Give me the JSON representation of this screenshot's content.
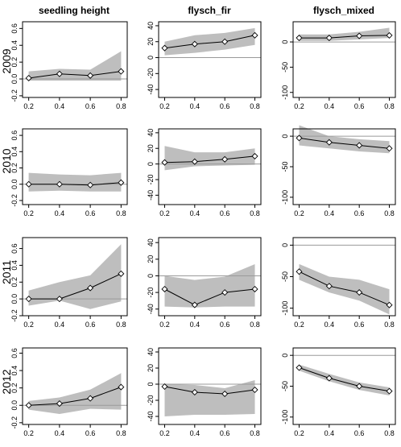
{
  "figure": {
    "column_titles": [
      "seedling height",
      "flysch_fir",
      "flysch_mixed"
    ],
    "row_labels": [
      "2009",
      "2010",
      "2011",
      "2012"
    ]
  },
  "style": {
    "band_color": "#bebebe",
    "line_color": "#000000",
    "zero_line_color": "#9a9a9a",
    "marker_fill": "#ffffff",
    "marker_shape": "diamond"
  },
  "chart_data": [
    {
      "type": "line",
      "row": "2009",
      "column": "seedling height",
      "x": [
        0.2,
        0.4,
        0.6,
        0.8
      ],
      "y": [
        0.01,
        0.06,
        0.04,
        0.09
      ],
      "band_lower": [
        -0.02,
        -0.02,
        -0.02,
        -0.02
      ],
      "band_upper": [
        0.09,
        0.12,
        0.11,
        0.33
      ],
      "ylim": [
        -0.22,
        0.68
      ],
      "yticks": [
        -0.2,
        0.0,
        0.2,
        0.4,
        0.6
      ],
      "ytick_labels": [
        "-0.2",
        "0.0",
        "0.2",
        "0.4",
        "0.6"
      ],
      "xticks": [
        0.2,
        0.4,
        0.6,
        0.8
      ],
      "xtick_labels": [
        "0.2",
        "0.4",
        "0.6",
        "0.8"
      ],
      "zero_line": true
    },
    {
      "type": "line",
      "row": "2009",
      "column": "flysch_fir",
      "x": [
        0.2,
        0.4,
        0.6,
        0.8
      ],
      "y": [
        12,
        17,
        20,
        28
      ],
      "band_lower": [
        3,
        6,
        10,
        16
      ],
      "band_upper": [
        20,
        28,
        31,
        37
      ],
      "ylim": [
        -50,
        45
      ],
      "yticks": [
        -40,
        -20,
        0,
        20,
        40
      ],
      "ytick_labels": [
        "-40",
        "-20",
        "0",
        "20",
        "40"
      ],
      "xticks": [
        0.2,
        0.4,
        0.6,
        0.8
      ],
      "xtick_labels": [
        "0.2",
        "0.4",
        "0.6",
        "0.8"
      ],
      "zero_line": true
    },
    {
      "type": "line",
      "row": "2009",
      "column": "flysch_mixed",
      "x": [
        0.2,
        0.4,
        0.6,
        0.8
      ],
      "y": [
        8,
        8,
        12,
        13
      ],
      "band_lower": [
        2,
        2,
        5,
        8
      ],
      "band_upper": [
        15,
        15,
        20,
        28
      ],
      "ylim": [
        -110,
        40
      ],
      "yticks": [
        -100,
        -50,
        0
      ],
      "ytick_labels": [
        "-100",
        "-50",
        "0"
      ],
      "xticks": [
        0.2,
        0.4,
        0.6,
        0.8
      ],
      "xtick_labels": [
        "0.2",
        "0.4",
        "0.6",
        "0.8"
      ],
      "zero_line": true
    },
    {
      "type": "line",
      "row": "2010",
      "column": "seedling height",
      "x": [
        0.2,
        0.4,
        0.6,
        0.8
      ],
      "y": [
        0.0,
        0.0,
        -0.01,
        0.02
      ],
      "band_lower": [
        -0.09,
        -0.08,
        -0.09,
        -0.09
      ],
      "band_upper": [
        0.14,
        0.12,
        0.11,
        0.14
      ],
      "ylim": [
        -0.25,
        0.68
      ],
      "yticks": [
        -0.2,
        0.0,
        0.2,
        0.4,
        0.6
      ],
      "ytick_labels": [
        "-0.2",
        "0.0",
        "0.2",
        "0.4",
        "0.6"
      ],
      "xticks": [
        0.2,
        0.4,
        0.6,
        0.8
      ],
      "xtick_labels": [
        "0.2",
        "0.4",
        "0.6",
        "0.8"
      ],
      "zero_line": true
    },
    {
      "type": "line",
      "row": "2010",
      "column": "flysch_fir",
      "x": [
        0.2,
        0.4,
        0.6,
        0.8
      ],
      "y": [
        2,
        3,
        6,
        10
      ],
      "band_lower": [
        -8,
        -3,
        -2,
        -1
      ],
      "band_upper": [
        23,
        15,
        15,
        20
      ],
      "ylim": [
        -52,
        45
      ],
      "yticks": [
        -40,
        -20,
        0,
        20,
        40
      ],
      "ytick_labels": [
        "-40",
        "-20",
        "0",
        "20",
        "40"
      ],
      "xticks": [
        0.2,
        0.4,
        0.6,
        0.8
      ],
      "xtick_labels": [
        "0.2",
        "0.4",
        "0.6",
        "0.8"
      ],
      "zero_line": true
    },
    {
      "type": "line",
      "row": "2010",
      "column": "flysch_mixed",
      "x": [
        0.2,
        0.4,
        0.6,
        0.8
      ],
      "y": [
        -3,
        -10,
        -15,
        -20
      ],
      "band_lower": [
        -15,
        -20,
        -25,
        -28
      ],
      "band_upper": [
        18,
        0,
        -5,
        -8
      ],
      "ylim": [
        -112,
        12
      ],
      "yticks": [
        -100,
        -50,
        0
      ],
      "ytick_labels": [
        "-100",
        "-50",
        "0"
      ],
      "xticks": [
        0.2,
        0.4,
        0.6,
        0.8
      ],
      "xtick_labels": [
        "0.2",
        "0.4",
        "0.6",
        "0.8"
      ],
      "zero_line": true
    },
    {
      "type": "line",
      "row": "2011",
      "column": "seedling height",
      "x": [
        0.2,
        0.4,
        0.6,
        0.8
      ],
      "y": [
        0.0,
        0.0,
        0.13,
        0.3
      ],
      "band_lower": [
        -0.08,
        -0.02,
        -0.12,
        -0.03
      ],
      "band_upper": [
        0.1,
        0.2,
        0.28,
        0.65
      ],
      "ylim": [
        -0.2,
        0.73
      ],
      "yticks": [
        -0.2,
        0.0,
        0.2,
        0.4,
        0.6
      ],
      "ytick_labels": [
        "-0.2",
        "0.0",
        "0.2",
        "0.4",
        "0.6"
      ],
      "xticks": [
        0.2,
        0.4,
        0.6,
        0.8
      ],
      "xtick_labels": [
        "0.2",
        "0.4",
        "0.6",
        "0.8"
      ],
      "zero_line": true
    },
    {
      "type": "line",
      "row": "2011",
      "column": "flysch_fir",
      "x": [
        0.2,
        0.4,
        0.6,
        0.8
      ],
      "y": [
        -16,
        -35,
        -20,
        -16
      ],
      "band_lower": [
        -37,
        -38,
        -37,
        -37
      ],
      "band_upper": [
        0,
        -5,
        -1,
        14
      ],
      "ylim": [
        -48,
        46
      ],
      "yticks": [
        -40,
        -20,
        0,
        20,
        40
      ],
      "ytick_labels": [
        "-40",
        "-20",
        "0",
        "20",
        "40"
      ],
      "xticks": [
        0.2,
        0.4,
        0.6,
        0.8
      ],
      "xtick_labels": [
        "0.2",
        "0.4",
        "0.6",
        "0.8"
      ],
      "zero_line": true
    },
    {
      "type": "line",
      "row": "2011",
      "column": "flysch_mixed",
      "x": [
        0.2,
        0.4,
        0.6,
        0.8
      ],
      "y": [
        -42,
        -65,
        -75,
        -95
      ],
      "band_lower": [
        -55,
        -75,
        -88,
        -110
      ],
      "band_upper": [
        -30,
        -50,
        -55,
        -70
      ],
      "ylim": [
        -112,
        12
      ],
      "yticks": [
        -100,
        -50,
        0
      ],
      "ytick_labels": [
        "-100",
        "-50",
        "0"
      ],
      "xticks": [
        0.2,
        0.4,
        0.6,
        0.8
      ],
      "xtick_labels": [
        "0.2",
        "0.4",
        "0.6",
        "0.8"
      ],
      "zero_line": true
    },
    {
      "type": "line",
      "row": "2012",
      "column": "seedling height",
      "x": [
        0.2,
        0.4,
        0.6,
        0.8
      ],
      "y": [
        0.0,
        0.02,
        0.08,
        0.21
      ],
      "band_lower": [
        -0.05,
        -0.1,
        -0.04,
        -0.05
      ],
      "band_upper": [
        0.05,
        0.09,
        0.18,
        0.37
      ],
      "ylim": [
        -0.22,
        0.66
      ],
      "yticks": [
        -0.2,
        0.0,
        0.2,
        0.4,
        0.6
      ],
      "ytick_labels": [
        "-0.2",
        "0.0",
        "0.2",
        "0.4",
        "0.6"
      ],
      "xticks": [
        0.2,
        0.4,
        0.6,
        0.8
      ],
      "xtick_labels": [
        "0.2",
        "0.4",
        "0.6",
        "0.8"
      ],
      "zero_line": true
    },
    {
      "type": "line",
      "row": "2012",
      "column": "flysch_fir",
      "x": [
        0.2,
        0.4,
        0.6,
        0.8
      ],
      "y": [
        -3,
        -10,
        -12,
        -7
      ],
      "band_lower": [
        -40,
        -38,
        -38,
        -37
      ],
      "band_upper": [
        0,
        -1,
        -5,
        5
      ],
      "ylim": [
        -50,
        45
      ],
      "yticks": [
        -40,
        -20,
        0,
        20,
        40
      ],
      "ytick_labels": [
        "-40",
        "-20",
        "0",
        "20",
        "40"
      ],
      "xticks": [
        0.2,
        0.4,
        0.6,
        0.8
      ],
      "xtick_labels": [
        "0.2",
        "0.4",
        "0.6",
        "0.8"
      ],
      "zero_line": true
    },
    {
      "type": "line",
      "row": "2012",
      "column": "flysch_mixed",
      "x": [
        0.2,
        0.4,
        0.6,
        0.8
      ],
      "y": [
        -20,
        -37,
        -50,
        -58
      ],
      "band_lower": [
        -25,
        -42,
        -56,
        -65
      ],
      "band_upper": [
        -15,
        -30,
        -44,
        -52
      ],
      "ylim": [
        -112,
        12
      ],
      "yticks": [
        -100,
        -50,
        0
      ],
      "ytick_labels": [
        "-100",
        "-50",
        "0"
      ],
      "xticks": [
        0.2,
        0.4,
        0.6,
        0.8
      ],
      "xtick_labels": [
        "0.2",
        "0.4",
        "0.6",
        "0.8"
      ],
      "zero_line": true
    }
  ]
}
